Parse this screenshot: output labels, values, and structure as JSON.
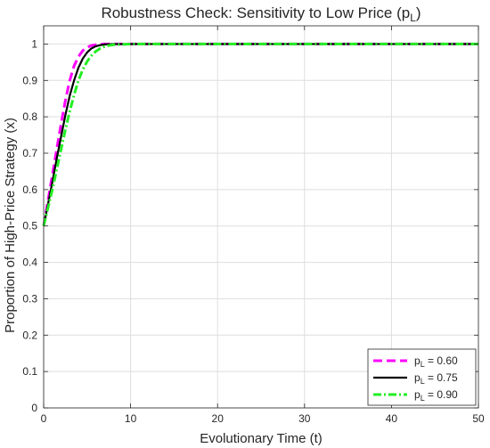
{
  "chart_data": {
    "type": "line",
    "title_main": "Robustness Check: Sensitivity to Low Price (p",
    "title_sub": "L",
    "title_tail": ")",
    "xlabel": "Evolutionary Time (t)",
    "ylabel": "Proportion of High-Price Strategy (x)",
    "xlim": [
      0,
      50
    ],
    "ylim": [
      0,
      1.05
    ],
    "xticks": [
      0,
      10,
      20,
      30,
      40,
      50
    ],
    "yticks": [
      0,
      0.1,
      0.2,
      0.3,
      0.4,
      0.5,
      0.6,
      0.7,
      0.8,
      0.9,
      1
    ],
    "xtick_labels": [
      "0",
      "10",
      "20",
      "30",
      "40",
      "50"
    ],
    "ytick_labels": [
      "0",
      "0.1",
      "0.2",
      "0.3",
      "0.4",
      "0.5",
      "0.6",
      "0.7",
      "0.8",
      "0.9",
      "1"
    ],
    "grid": true,
    "legend_position": "bottom-right",
    "series": [
      {
        "name_main": "p",
        "name_sub": "L",
        "name_value": " = 0.60",
        "color": "#ff00ff",
        "style": "dashed",
        "x": [
          0,
          0.5,
          1,
          1.5,
          2,
          2.5,
          3,
          3.5,
          4,
          4.5,
          5,
          5.5,
          6,
          7,
          8,
          10,
          15,
          20,
          25,
          30,
          35,
          40,
          45,
          50
        ],
        "y": [
          0.5,
          0.57,
          0.64,
          0.71,
          0.78,
          0.845,
          0.9,
          0.94,
          0.965,
          0.982,
          0.991,
          0.996,
          0.998,
          1,
          1,
          1,
          1,
          1,
          1,
          1,
          1,
          1,
          1,
          1
        ]
      },
      {
        "name_main": "p",
        "name_sub": "L",
        "name_value": " = 0.75",
        "color": "#000000",
        "style": "solid",
        "x": [
          0,
          0.5,
          1,
          1.5,
          2,
          2.5,
          3,
          3.5,
          4,
          4.5,
          5,
          5.5,
          6,
          6.5,
          7,
          8,
          10,
          15,
          20,
          25,
          30,
          35,
          40,
          45,
          50
        ],
        "y": [
          0.5,
          0.56,
          0.62,
          0.685,
          0.745,
          0.805,
          0.858,
          0.9,
          0.935,
          0.96,
          0.977,
          0.988,
          0.994,
          0.997,
          0.999,
          1,
          1,
          1,
          1,
          1,
          1,
          1,
          1,
          1,
          1
        ]
      },
      {
        "name_main": "p",
        "name_sub": "L",
        "name_value": " = 0.90",
        "color": "#22ee22",
        "style": "dashdot",
        "x": [
          0,
          0.5,
          1,
          1.5,
          2,
          2.5,
          3,
          3.5,
          4,
          4.5,
          5,
          5.5,
          6,
          6.5,
          7,
          7.5,
          8,
          9,
          10,
          15,
          20,
          25,
          30,
          35,
          40,
          45,
          50
        ],
        "y": [
          0.5,
          0.55,
          0.6,
          0.655,
          0.71,
          0.765,
          0.815,
          0.86,
          0.9,
          0.93,
          0.952,
          0.968,
          0.98,
          0.988,
          0.993,
          0.996,
          0.998,
          0.999,
          1,
          1,
          1,
          1,
          1,
          1,
          1,
          1,
          1
        ]
      }
    ]
  }
}
